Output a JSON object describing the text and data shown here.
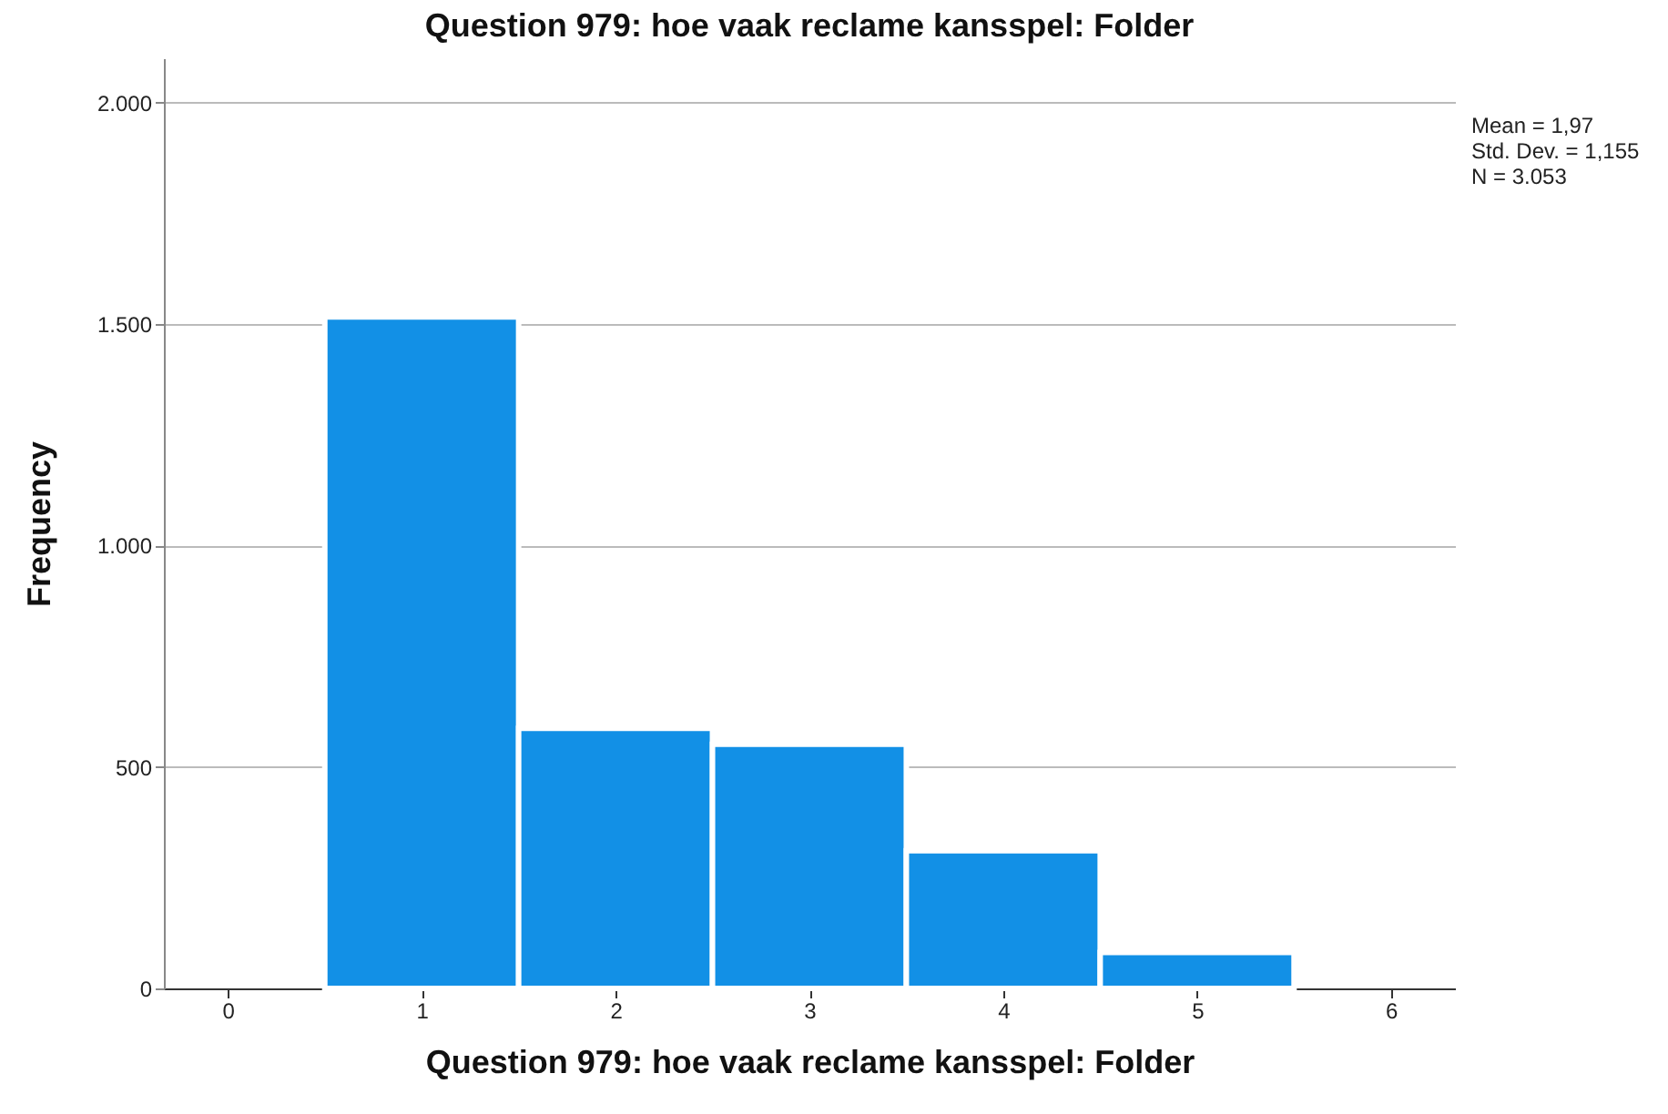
{
  "chart_data": {
    "type": "histogram",
    "title": "Question 979: hoe vaak reclame kansspel: Folder",
    "xlabel": "Question 979: hoe vaak reclame kansspel: Folder",
    "ylabel": "Frequency",
    "bins": [
      0.5,
      1.5,
      2.5,
      3.5,
      4.5,
      5.5
    ],
    "values": [
      1516,
      587,
      551,
      311,
      81
    ],
    "color": "#1290e6",
    "xlim": [
      -0.33,
      6.33
    ],
    "xticks": [
      0,
      1,
      2,
      3,
      4,
      5,
      6
    ],
    "ylim": [
      0,
      2100
    ],
    "yticks": [
      0,
      {
        "value": 500,
        "label": "500"
      },
      {
        "value": 1000,
        "label": "1.000"
      },
      {
        "value": 1500,
        "label": "1.500"
      },
      {
        "value": 2000,
        "label": "2.000"
      }
    ],
    "grid": "y",
    "annotations": [
      "Mean = 1,97",
      "Std. Dev. = 1,155",
      "N = 3.053"
    ]
  }
}
